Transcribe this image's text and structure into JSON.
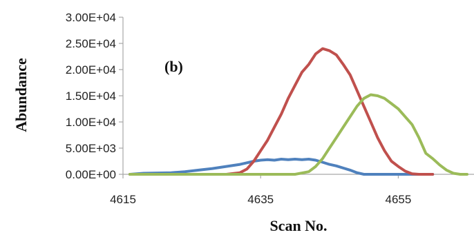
{
  "chart_data": {
    "type": "line",
    "title": "",
    "annotation": "(b)",
    "xlabel": "Scan No.",
    "ylabel": "Abundance",
    "xlim": [
      4615,
      4666
    ],
    "ylim": [
      0,
      30000
    ],
    "x_ticks": [
      4615,
      4635,
      4655
    ],
    "x_tick_labels": [
      "4615",
      "4635",
      "4655"
    ],
    "y_ticks": [
      0,
      5000,
      10000,
      15000,
      20000,
      25000,
      30000
    ],
    "y_tick_labels": [
      "0.00E+00",
      "5.00E+03",
      "1.00E+04",
      "1.50E+04",
      "2.00E+04",
      "2.50E+04",
      "3.00E+04"
    ],
    "grid": false,
    "legend": "none",
    "series": [
      {
        "color": "#4f81bd",
        "x": [
          4616,
          4618,
          4620,
          4622,
          4624,
          4626,
          4628,
          4630,
          4632,
          4633,
          4634,
          4635,
          4636,
          4637,
          4638,
          4639,
          4640,
          4641,
          4642,
          4643,
          4644,
          4645,
          4646,
          4647,
          4648,
          4649,
          4650,
          4652,
          4655,
          4660
        ],
        "y": [
          0,
          200,
          250,
          300,
          500,
          800,
          1100,
          1500,
          1900,
          2200,
          2500,
          2700,
          2800,
          2700,
          2900,
          2800,
          2900,
          2800,
          2900,
          2700,
          2300,
          1900,
          1600,
          1200,
          800,
          300,
          0,
          0,
          0,
          0
        ]
      },
      {
        "color": "#c0504d",
        "x": [
          4616,
          4630,
          4632,
          4633,
          4634,
          4635,
          4636,
          4637,
          4638,
          4639,
          4640,
          4641,
          4642,
          4643,
          4644,
          4645,
          4646,
          4647,
          4648,
          4649,
          4650,
          4651,
          4652,
          4653,
          4654,
          4655,
          4656,
          4657,
          4658,
          4660
        ],
        "y": [
          0,
          0,
          300,
          1000,
          2500,
          4500,
          6500,
          9000,
          11500,
          14500,
          17000,
          19500,
          21000,
          23000,
          24000,
          23600,
          22800,
          21000,
          19000,
          16000,
          13000,
          10000,
          7000,
          4500,
          2500,
          1500,
          600,
          100,
          0,
          0
        ]
      },
      {
        "color": "#9bbb59",
        "x": [
          4616,
          4640,
          4642,
          4643,
          4644,
          4645,
          4646,
          4647,
          4648,
          4649,
          4650,
          4651,
          4652,
          4653,
          4654,
          4655,
          4656,
          4657,
          4658,
          4659,
          4660,
          4661,
          4662,
          4663,
          4664,
          4665
        ],
        "y": [
          0,
          0,
          500,
          1500,
          3000,
          5000,
          7000,
          9000,
          11000,
          13000,
          14500,
          15200,
          15000,
          14500,
          13500,
          12500,
          11000,
          9500,
          7000,
          4000,
          3000,
          1800,
          800,
          200,
          0,
          0
        ]
      }
    ]
  }
}
